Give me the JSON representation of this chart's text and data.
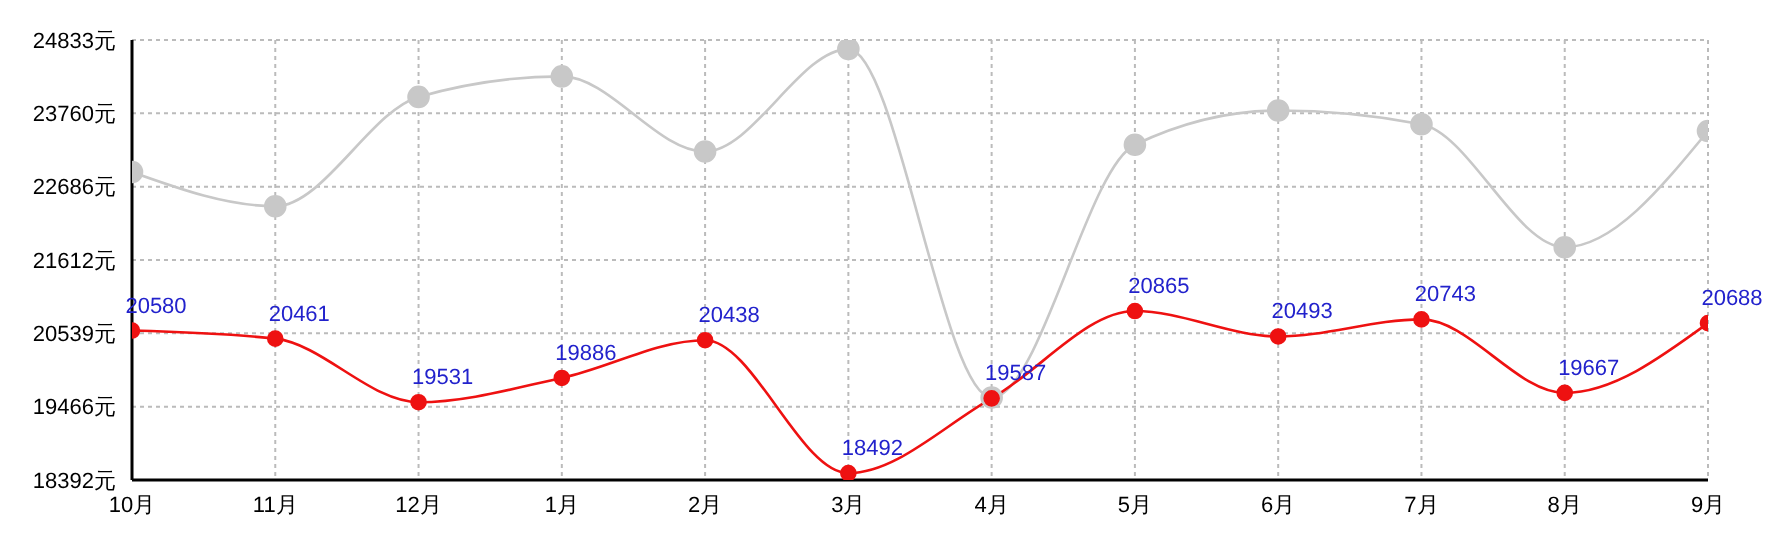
{
  "chart_data": {
    "type": "line",
    "categories": [
      "10月",
      "11月",
      "12月",
      "1月",
      "2月",
      "3月",
      "4月",
      "5月",
      "6月",
      "7月",
      "8月",
      "9月"
    ],
    "series": [
      {
        "color": "#c8c8c8",
        "values": [
          22900,
          22400,
          24000,
          24300,
          23200,
          24700,
          19600,
          23300,
          23800,
          23600,
          21800,
          23500
        ]
      },
      {
        "color": "#ee1111",
        "values": [
          20580,
          20461,
          19531,
          19886,
          20438,
          18492,
          19587,
          20865,
          20493,
          20743,
          19667,
          20688
        ],
        "value_labels": [
          "20580",
          "20461",
          "19531",
          "19886",
          "20438",
          "18492",
          "19587",
          "20865",
          "20493",
          "20743",
          "19667",
          "20688"
        ]
      }
    ],
    "ylim": [
      18392,
      24833
    ],
    "yticks": [
      {
        "value": 18392,
        "label": "18392元"
      },
      {
        "value": 19466,
        "label": "19466元"
      },
      {
        "value": 20539,
        "label": "20539元"
      },
      {
        "value": 21612,
        "label": "21612元"
      },
      {
        "value": 22686,
        "label": "22686元"
      },
      {
        "value": 23760,
        "label": "23760元"
      },
      {
        "value": 24833,
        "label": "24833元"
      }
    ],
    "grid": true,
    "marker": "circle",
    "line_style": "solid",
    "legend": false
  }
}
